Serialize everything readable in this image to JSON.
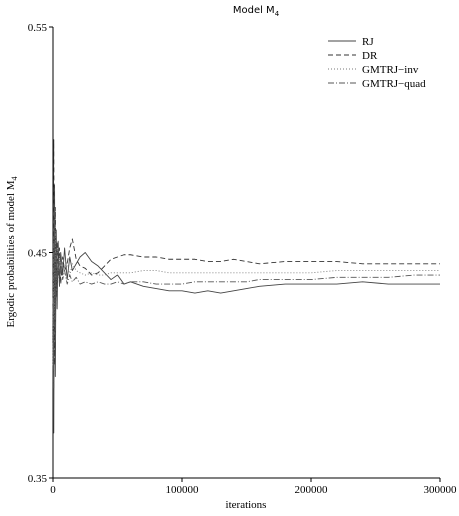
{
  "chart_data": {
    "type": "line",
    "title": "Model M",
    "title_subscript": "4",
    "xlabel": "iterations",
    "ylabel": "Ergodic probabilities of model M",
    "ylabel_subscript": "4",
    "xlim": [
      0,
      300000
    ],
    "ylim": [
      0.35,
      0.55
    ],
    "xticks": [
      0,
      100000,
      200000,
      300000
    ],
    "xtick_labels": [
      "0",
      "100000",
      "200000",
      "300000"
    ],
    "yticks": [
      0.35,
      0.45,
      0.55
    ],
    "ytick_labels": [
      "0.35",
      "0.45",
      "0.55"
    ],
    "grid": false,
    "legend_position": "top-right",
    "series": [
      {
        "name": "RJ",
        "style": "solid",
        "color": "#444444",
        "x": [
          0,
          600,
          1200,
          1800,
          2500,
          3200,
          4000,
          5000,
          6000,
          7500,
          9000,
          11000,
          13000,
          15000,
          18000,
          21000,
          25000,
          30000,
          35000,
          40000,
          45000,
          50000,
          55000,
          60000,
          70000,
          80000,
          90000,
          100000,
          110000,
          120000,
          130000,
          140000,
          150000,
          160000,
          180000,
          200000,
          220000,
          240000,
          260000,
          280000,
          300000
        ],
        "y": [
          0.41,
          0.37,
          0.48,
          0.395,
          0.46,
          0.425,
          0.455,
          0.435,
          0.45,
          0.44,
          0.452,
          0.438,
          0.448,
          0.442,
          0.445,
          0.448,
          0.45,
          0.446,
          0.444,
          0.441,
          0.438,
          0.44,
          0.436,
          0.437,
          0.435,
          0.434,
          0.433,
          0.433,
          0.432,
          0.433,
          0.432,
          0.433,
          0.434,
          0.435,
          0.436,
          0.436,
          0.436,
          0.437,
          0.436,
          0.436,
          0.436
        ]
      },
      {
        "name": "DR",
        "style": "dashed",
        "color": "#333333",
        "x": [
          0,
          600,
          1200,
          1800,
          2500,
          3200,
          4000,
          5000,
          6000,
          7500,
          9000,
          11000,
          13000,
          15000,
          18000,
          21000,
          25000,
          30000,
          35000,
          40000,
          45000,
          50000,
          55000,
          60000,
          70000,
          80000,
          90000,
          100000,
          110000,
          120000,
          130000,
          140000,
          150000,
          160000,
          180000,
          200000,
          220000,
          240000,
          260000,
          280000,
          300000
        ],
        "y": [
          0.42,
          0.5,
          0.4,
          0.47,
          0.43,
          0.455,
          0.44,
          0.452,
          0.436,
          0.448,
          0.442,
          0.445,
          0.452,
          0.456,
          0.447,
          0.444,
          0.443,
          0.44,
          0.441,
          0.444,
          0.447,
          0.448,
          0.449,
          0.449,
          0.448,
          0.448,
          0.447,
          0.447,
          0.447,
          0.446,
          0.446,
          0.447,
          0.446,
          0.445,
          0.446,
          0.446,
          0.446,
          0.445,
          0.445,
          0.445,
          0.445
        ]
      },
      {
        "name": "GMTRJ−inv",
        "style": "dotted",
        "color": "#777777",
        "x": [
          0,
          600,
          1200,
          1800,
          2500,
          3200,
          4000,
          5000,
          6000,
          7500,
          9000,
          11000,
          13000,
          15000,
          18000,
          21000,
          25000,
          30000,
          35000,
          40000,
          45000,
          50000,
          55000,
          60000,
          70000,
          80000,
          90000,
          100000,
          110000,
          120000,
          130000,
          140000,
          150000,
          160000,
          180000,
          200000,
          220000,
          240000,
          260000,
          280000,
          300000
        ],
        "y": [
          0.4,
          0.455,
          0.42,
          0.46,
          0.438,
          0.452,
          0.442,
          0.449,
          0.441,
          0.447,
          0.443,
          0.446,
          0.44,
          0.445,
          0.442,
          0.441,
          0.44,
          0.441,
          0.44,
          0.44,
          0.441,
          0.441,
          0.441,
          0.441,
          0.442,
          0.442,
          0.441,
          0.441,
          0.441,
          0.441,
          0.441,
          0.441,
          0.441,
          0.441,
          0.441,
          0.441,
          0.442,
          0.442,
          0.442,
          0.442,
          0.442
        ]
      },
      {
        "name": "GMTRJ−quad",
        "style": "dashdot",
        "color": "#555555",
        "x": [
          0,
          600,
          1200,
          1800,
          2500,
          3200,
          4000,
          5000,
          6000,
          7500,
          9000,
          11000,
          13000,
          15000,
          18000,
          21000,
          25000,
          30000,
          35000,
          40000,
          45000,
          50000,
          55000,
          60000,
          70000,
          80000,
          90000,
          100000,
          110000,
          120000,
          130000,
          140000,
          150000,
          160000,
          180000,
          200000,
          220000,
          240000,
          260000,
          280000,
          300000
        ],
        "y": [
          0.43,
          0.39,
          0.47,
          0.41,
          0.45,
          0.43,
          0.448,
          0.436,
          0.444,
          0.438,
          0.442,
          0.436,
          0.44,
          0.437,
          0.439,
          0.436,
          0.437,
          0.436,
          0.437,
          0.436,
          0.436,
          0.437,
          0.436,
          0.437,
          0.437,
          0.436,
          0.436,
          0.436,
          0.437,
          0.437,
          0.437,
          0.437,
          0.437,
          0.438,
          0.438,
          0.438,
          0.439,
          0.439,
          0.439,
          0.44,
          0.44
        ]
      }
    ]
  }
}
